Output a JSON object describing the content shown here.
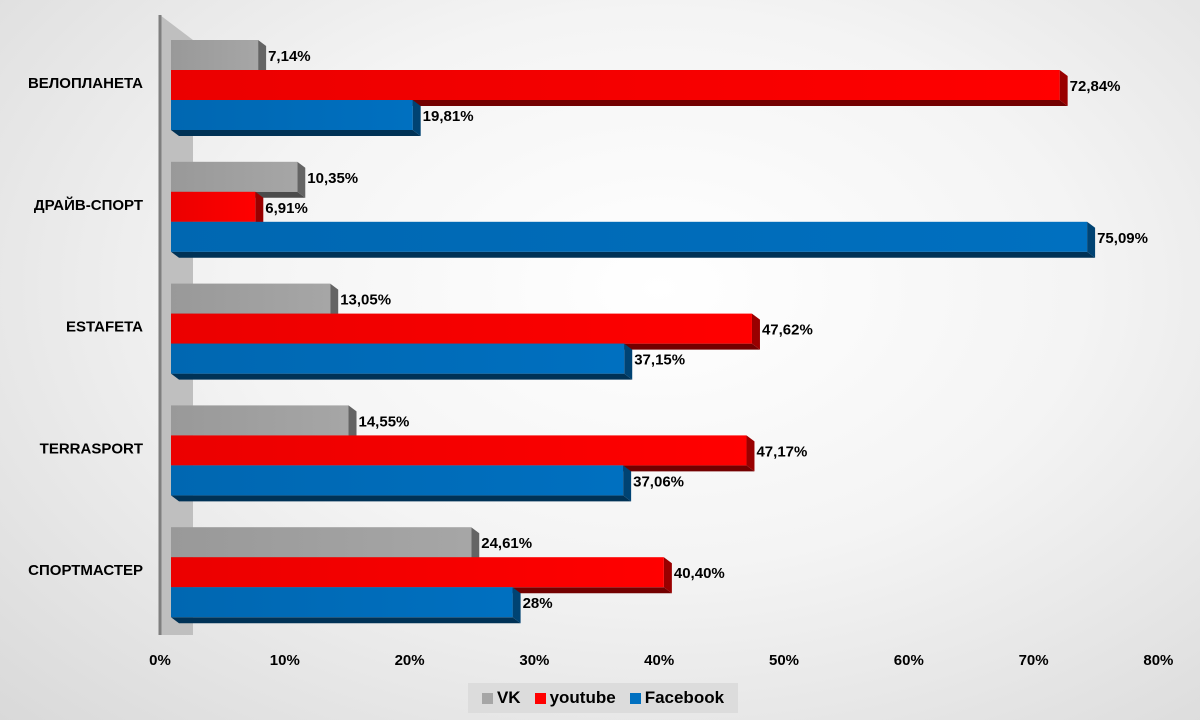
{
  "chart_data": {
    "type": "bar",
    "orientation": "horizontal",
    "style": "3d",
    "title": "",
    "xlabel": "",
    "ylabel": "",
    "xlim": [
      0,
      80
    ],
    "x_ticks": [
      "0%",
      "10%",
      "20%",
      "30%",
      "40%",
      "50%",
      "60%",
      "70%",
      "80%"
    ],
    "categories": [
      "ВЕЛОПЛАНЕТА",
      "ДРАЙВ-СПОРТ",
      "ESTAFETA",
      "TERRASPORT",
      "СПОРТМАСТЕР"
    ],
    "series": [
      {
        "name": "VK",
        "color": "#a6a6a6",
        "values": [
          7.14,
          10.35,
          13.05,
          14.55,
          24.61
        ],
        "labels": [
          "7,14%",
          "10,35%",
          "13,05%",
          "14,55%",
          "24,61%"
        ]
      },
      {
        "name": "youtube",
        "color": "#ff0000",
        "values": [
          72.84,
          6.91,
          47.62,
          47.17,
          40.4
        ],
        "labels": [
          "72,84%",
          "6,91%",
          "47,62%",
          "47,17%",
          "40,40%"
        ]
      },
      {
        "name": "Facebook",
        "color": "#0070c0",
        "values": [
          19.81,
          75.09,
          37.15,
          37.06,
          28
        ],
        "labels": [
          "19,81%",
          "75,09%",
          "37,15%",
          "37,06%",
          "28%"
        ]
      }
    ],
    "legend_position": "bottom",
    "grid": false
  }
}
